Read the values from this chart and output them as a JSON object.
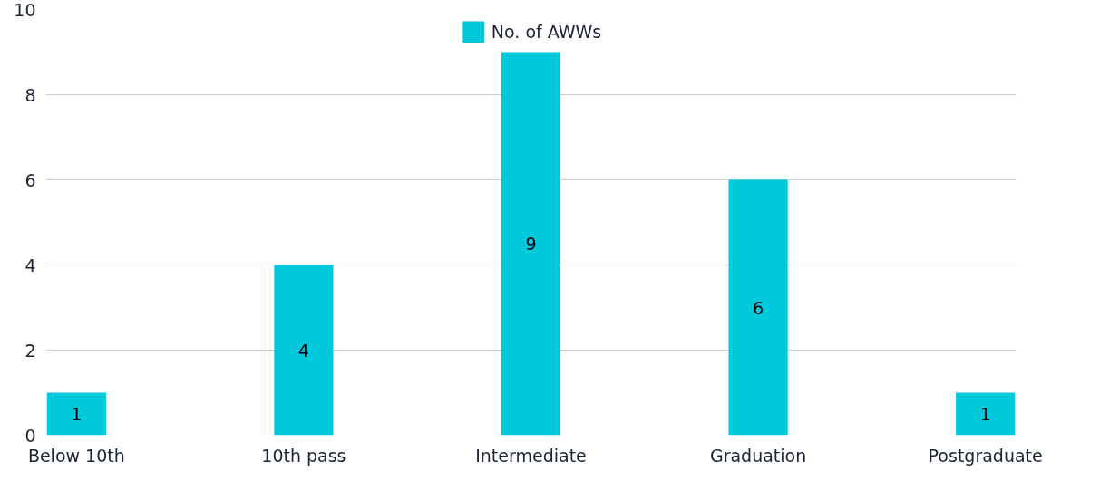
{
  "chart_data": {
    "type": "bar",
    "categories": [
      "Below 10th",
      "10th pass",
      "Intermediate",
      "Graduation",
      "Postgraduate"
    ],
    "series": [
      {
        "name": "No. of AWWs",
        "color": "#00c9db",
        "values": [
          1,
          4,
          9,
          6,
          1
        ]
      }
    ],
    "ylim": [
      0,
      10
    ],
    "yticks": [
      0,
      2,
      4,
      6,
      8,
      10
    ],
    "grid": "y",
    "legend": "top",
    "data_labels": true
  }
}
